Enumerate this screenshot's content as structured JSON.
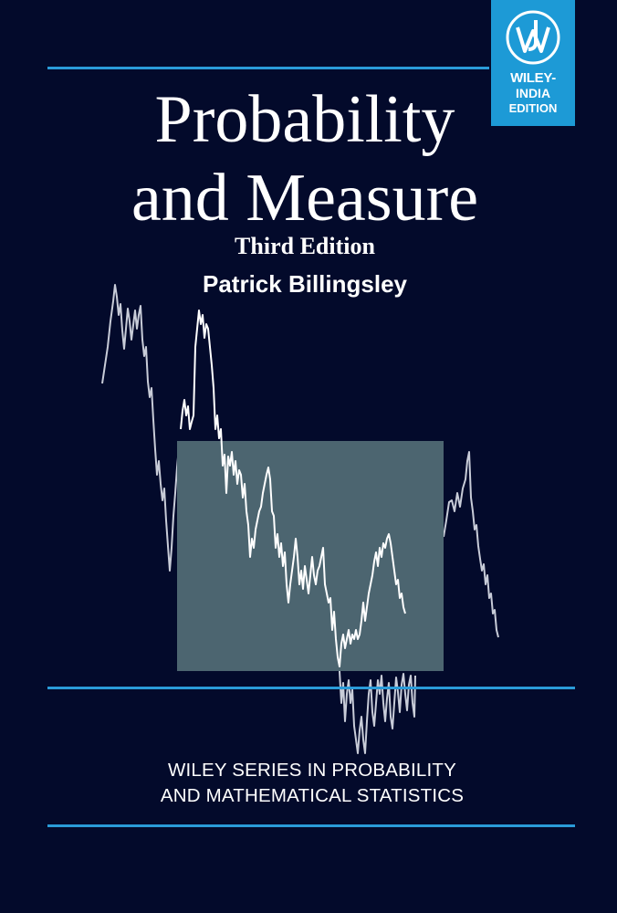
{
  "cover": {
    "title_line1": "Probability",
    "title_line2": "and Measure",
    "edition": "Third Edition",
    "author": "Patrick Billingsley",
    "series_line1": "WILEY SERIES IN PROBABILITY",
    "series_line2": "AND MATHEMATICAL STATISTICS"
  },
  "publisher_badge": {
    "line1": "WILEY-",
    "line2": "INDIA",
    "line3": "EDITION",
    "logo_icon": "wiley-jw-monogram"
  },
  "colors": {
    "background": "#030a2b",
    "rules": "#2a9bd8",
    "badge": "#1d9ad6",
    "inset_box": "#4c6570",
    "path": "#c8ccd8"
  }
}
